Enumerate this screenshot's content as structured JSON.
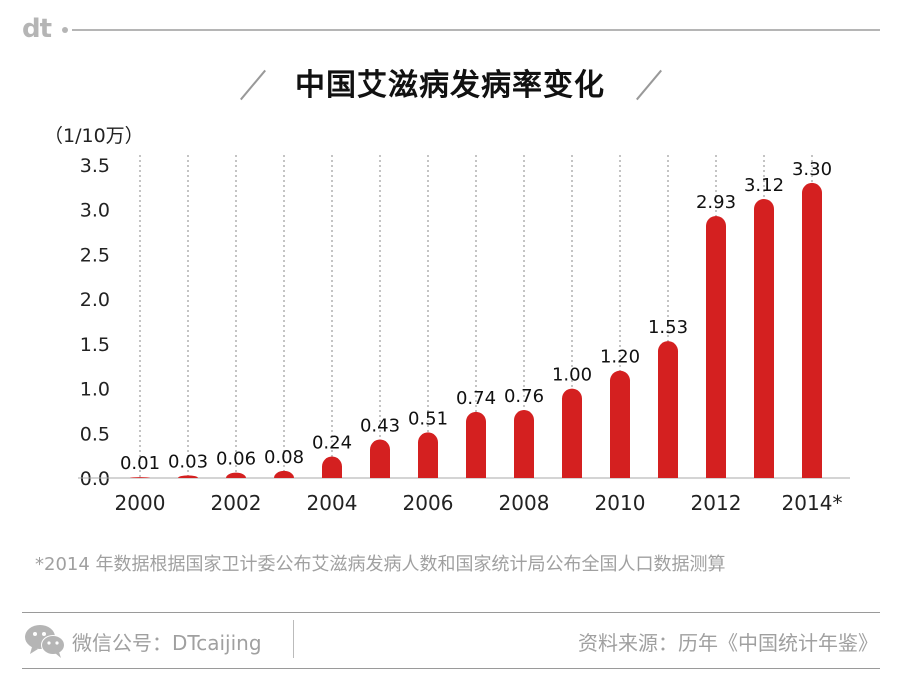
{
  "brand": {
    "logo": "dt"
  },
  "header": {
    "title": "中国艾滋病发病率变化"
  },
  "chart_data": {
    "type": "bar",
    "title": "中国艾滋病发病率变化",
    "unit_label": "（1/10万）",
    "years": [
      "2000",
      "2001",
      "2002",
      "2003",
      "2004",
      "2005",
      "2006",
      "2007",
      "2008",
      "2009",
      "2010",
      "2011",
      "2012",
      "2013",
      "2014*"
    ],
    "values": [
      0.01,
      0.03,
      0.06,
      0.08,
      0.24,
      0.43,
      0.51,
      0.74,
      0.76,
      1.0,
      1.2,
      1.53,
      2.93,
      3.12,
      3.3
    ],
    "value_labels": [
      "0.01",
      "0.03",
      "0.06",
      "0.08",
      "0.24",
      "0.43",
      "0.51",
      "0.74",
      "0.76",
      "1.00",
      "1.20",
      "1.53",
      "2.93",
      "3.12",
      "3.30"
    ],
    "x_tick_labels": [
      "2000",
      "2002",
      "2004",
      "2006",
      "2008",
      "2010",
      "2012",
      "2014*"
    ],
    "y_ticks": [
      "0.0",
      "0.5",
      "1.0",
      "1.5",
      "2.0",
      "2.5",
      "3.0",
      "3.5"
    ],
    "ylim": [
      0,
      3.5
    ],
    "bar_color": "#d42020",
    "grid": "vertical dashed"
  },
  "footnote": "*2014 年数据根据国家卫计委公布艾滋病发病人数和国家统计局公布全国人口数据测算",
  "footer": {
    "wechat_label": "微信公号：DTcaijing",
    "source": "资料来源：历年《中国统计年鉴》"
  },
  "colors": {
    "accent": "#d42020",
    "muted": "#a0a0a0"
  }
}
